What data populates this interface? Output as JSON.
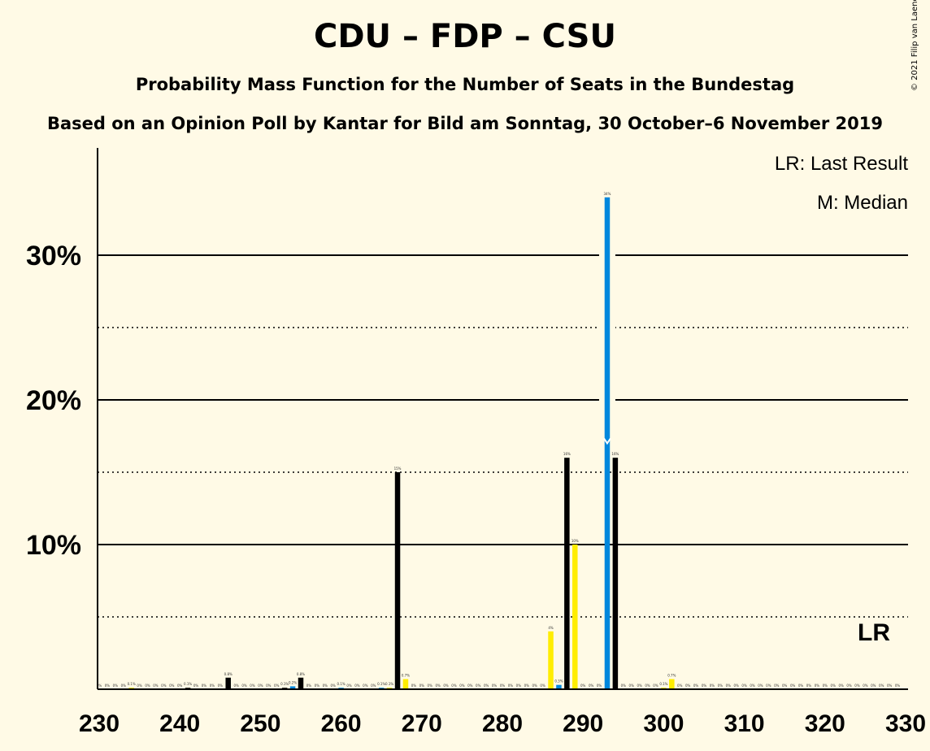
{
  "title": "CDU – FDP – CSU",
  "subtitle": "Probability Mass Function for the Number of Seats in the Bundestag",
  "subtitle2": "Based on an Opinion Poll by Kantar for Bild am Sonntag, 30 October–6 November 2019",
  "copyright": "© 2021 Filip van Laenen",
  "legend": {
    "last_result": "LR: Last Result",
    "median": "M: Median",
    "lr_marker": "LR"
  },
  "colors": {
    "background": "#FFFAE6",
    "black": "#000000",
    "blue": "#0087DC",
    "yellow": "#FFED00"
  },
  "chart_data": {
    "type": "bar",
    "title": "CDU – FDP – CSU",
    "xlabel": "",
    "ylabel": "",
    "xlim": [
      230,
      330
    ],
    "ylim": [
      0,
      37
    ],
    "x_ticks": [
      230,
      240,
      250,
      260,
      270,
      280,
      290,
      300,
      310,
      320,
      330
    ],
    "y_ticks": [
      {
        "value": 10,
        "label": "10%"
      },
      {
        "value": 20,
        "label": "20%"
      },
      {
        "value": 30,
        "label": "30%"
      }
    ],
    "dotted_gridlines": [
      5,
      15,
      25
    ],
    "median_seat": 293,
    "last_result_seat": 327,
    "bars": [
      {
        "x": 230,
        "value": 0,
        "color": "blue",
        "label": "0%"
      },
      {
        "x": 231,
        "value": 0,
        "color": "yellow",
        "label": "0%"
      },
      {
        "x": 232,
        "value": 0,
        "color": "black",
        "label": "0%"
      },
      {
        "x": 233,
        "value": 0,
        "color": "blue",
        "label": "0%"
      },
      {
        "x": 234,
        "value": 0.1,
        "color": "yellow",
        "label": "0.1%"
      },
      {
        "x": 235,
        "value": 0,
        "color": "black",
        "label": "0%"
      },
      {
        "x": 236,
        "value": 0,
        "color": "blue",
        "label": "0%"
      },
      {
        "x": 237,
        "value": 0,
        "color": "yellow",
        "label": "0%"
      },
      {
        "x": 238,
        "value": 0,
        "color": "black",
        "label": "0%"
      },
      {
        "x": 239,
        "value": 0,
        "color": "blue",
        "label": "0%"
      },
      {
        "x": 240,
        "value": 0,
        "color": "yellow",
        "label": "0%"
      },
      {
        "x": 241,
        "value": 0.1,
        "color": "black",
        "label": "0.1%"
      },
      {
        "x": 242,
        "value": 0,
        "color": "blue",
        "label": "0%"
      },
      {
        "x": 243,
        "value": 0,
        "color": "yellow",
        "label": "0%"
      },
      {
        "x": 244,
        "value": 0,
        "color": "black",
        "label": "0%"
      },
      {
        "x": 245,
        "value": 0,
        "color": "blue",
        "label": "0%"
      },
      {
        "x": 246,
        "value": 0.8,
        "color": "black",
        "label": "0.8%"
      },
      {
        "x": 247,
        "value": 0,
        "color": "black",
        "label": "0%"
      },
      {
        "x": 248,
        "value": 0,
        "color": "blue",
        "label": "0%"
      },
      {
        "x": 249,
        "value": 0,
        "color": "yellow",
        "label": "0%"
      },
      {
        "x": 250,
        "value": 0,
        "color": "black",
        "label": "0%"
      },
      {
        "x": 251,
        "value": 0,
        "color": "blue",
        "label": "0%"
      },
      {
        "x": 252,
        "value": 0,
        "color": "yellow",
        "label": "0%"
      },
      {
        "x": 253,
        "value": 0.1,
        "color": "black",
        "label": "0.1%"
      },
      {
        "x": 254,
        "value": 0.2,
        "color": "blue",
        "label": "0.2%"
      },
      {
        "x": 255,
        "value": 0.8,
        "color": "black",
        "label": "0.8%"
      },
      {
        "x": 256,
        "value": 0,
        "color": "black",
        "label": "0%"
      },
      {
        "x": 257,
        "value": 0,
        "color": "blue",
        "label": "0%"
      },
      {
        "x": 258,
        "value": 0,
        "color": "yellow",
        "label": "0%"
      },
      {
        "x": 259,
        "value": 0,
        "color": "black",
        "label": "0%"
      },
      {
        "x": 260,
        "value": 0.1,
        "color": "blue",
        "label": "0.1%"
      },
      {
        "x": 261,
        "value": 0,
        "color": "yellow",
        "label": "0%"
      },
      {
        "x": 262,
        "value": 0,
        "color": "black",
        "label": "0%"
      },
      {
        "x": 263,
        "value": 0,
        "color": "blue",
        "label": "0%"
      },
      {
        "x": 264,
        "value": 0,
        "color": "yellow",
        "label": "0%"
      },
      {
        "x": 265,
        "value": 0.1,
        "color": "blue",
        "label": "0.1%"
      },
      {
        "x": 266,
        "value": 0.1,
        "color": "yellow",
        "label": "0.1%"
      },
      {
        "x": 267,
        "value": 15,
        "color": "black",
        "label": "15%"
      },
      {
        "x": 268,
        "value": 0.7,
        "color": "yellow",
        "label": "0.7%"
      },
      {
        "x": 269,
        "value": 0,
        "color": "black",
        "label": "0%"
      },
      {
        "x": 270,
        "value": 0,
        "color": "blue",
        "label": "0%"
      },
      {
        "x": 271,
        "value": 0,
        "color": "yellow",
        "label": "0%"
      },
      {
        "x": 272,
        "value": 0,
        "color": "black",
        "label": "0%"
      },
      {
        "x": 273,
        "value": 0,
        "color": "blue",
        "label": "0%"
      },
      {
        "x": 274,
        "value": 0,
        "color": "yellow",
        "label": "0%"
      },
      {
        "x": 275,
        "value": 0,
        "color": "black",
        "label": "0%"
      },
      {
        "x": 276,
        "value": 0,
        "color": "blue",
        "label": "0%"
      },
      {
        "x": 277,
        "value": 0,
        "color": "yellow",
        "label": "0%"
      },
      {
        "x": 278,
        "value": 0,
        "color": "black",
        "label": "0%"
      },
      {
        "x": 279,
        "value": 0,
        "color": "blue",
        "label": "0%"
      },
      {
        "x": 280,
        "value": 0,
        "color": "yellow",
        "label": "0%"
      },
      {
        "x": 281,
        "value": 0,
        "color": "black",
        "label": "0%"
      },
      {
        "x": 282,
        "value": 0,
        "color": "blue",
        "label": "0%"
      },
      {
        "x": 283,
        "value": 0,
        "color": "yellow",
        "label": "0%"
      },
      {
        "x": 284,
        "value": 0,
        "color": "black",
        "label": "0%"
      },
      {
        "x": 285,
        "value": 0,
        "color": "blue",
        "label": "0%"
      },
      {
        "x": 286,
        "value": 4,
        "color": "yellow",
        "label": "4%"
      },
      {
        "x": 287,
        "value": 0.3,
        "color": "blue",
        "label": "0.3%"
      },
      {
        "x": 288,
        "value": 16,
        "color": "black",
        "label": "16%"
      },
      {
        "x": 289,
        "value": 10,
        "color": "yellow",
        "label": "10%"
      },
      {
        "x": 290,
        "value": 0,
        "color": "black",
        "label": "0%"
      },
      {
        "x": 291,
        "value": 0,
        "color": "blue",
        "label": "0%"
      },
      {
        "x": 292,
        "value": 0,
        "color": "yellow",
        "label": "0%"
      },
      {
        "x": 293,
        "value": 34,
        "color": "blue",
        "label": "34%"
      },
      {
        "x": 294,
        "value": 16,
        "color": "black",
        "label": "16%"
      },
      {
        "x": 295,
        "value": 0,
        "color": "black",
        "label": "0%"
      },
      {
        "x": 296,
        "value": 0,
        "color": "blue",
        "label": "0%"
      },
      {
        "x": 297,
        "value": 0,
        "color": "yellow",
        "label": "0%"
      },
      {
        "x": 298,
        "value": 0,
        "color": "black",
        "label": "0%"
      },
      {
        "x": 299,
        "value": 0,
        "color": "blue",
        "label": "0%"
      },
      {
        "x": 300,
        "value": 0.1,
        "color": "yellow",
        "label": "0.1%"
      },
      {
        "x": 301,
        "value": 0.7,
        "color": "yellow",
        "label": "0.7%"
      },
      {
        "x": 302,
        "value": 0,
        "color": "black",
        "label": "0%"
      },
      {
        "x": 303,
        "value": 0,
        "color": "blue",
        "label": "0%"
      },
      {
        "x": 304,
        "value": 0,
        "color": "yellow",
        "label": "0%"
      },
      {
        "x": 305,
        "value": 0,
        "color": "black",
        "label": "0%"
      },
      {
        "x": 306,
        "value": 0,
        "color": "blue",
        "label": "0%"
      },
      {
        "x": 307,
        "value": 0,
        "color": "yellow",
        "label": "0%"
      },
      {
        "x": 308,
        "value": 0,
        "color": "black",
        "label": "0%"
      },
      {
        "x": 309,
        "value": 0,
        "color": "blue",
        "label": "0%"
      },
      {
        "x": 310,
        "value": 0,
        "color": "yellow",
        "label": "0%"
      },
      {
        "x": 311,
        "value": 0,
        "color": "black",
        "label": "0%"
      },
      {
        "x": 312,
        "value": 0,
        "color": "blue",
        "label": "0%"
      },
      {
        "x": 313,
        "value": 0,
        "color": "yellow",
        "label": "0%"
      },
      {
        "x": 314,
        "value": 0,
        "color": "black",
        "label": "0%"
      },
      {
        "x": 315,
        "value": 0,
        "color": "blue",
        "label": "0%"
      },
      {
        "x": 316,
        "value": 0,
        "color": "yellow",
        "label": "0%"
      },
      {
        "x": 317,
        "value": 0,
        "color": "black",
        "label": "0%"
      },
      {
        "x": 318,
        "value": 0,
        "color": "blue",
        "label": "0%"
      },
      {
        "x": 319,
        "value": 0,
        "color": "yellow",
        "label": "0%"
      },
      {
        "x": 320,
        "value": 0,
        "color": "black",
        "label": "0%"
      },
      {
        "x": 321,
        "value": 0,
        "color": "blue",
        "label": "0%"
      },
      {
        "x": 322,
        "value": 0,
        "color": "yellow",
        "label": "0%"
      },
      {
        "x": 323,
        "value": 0,
        "color": "black",
        "label": "0%"
      },
      {
        "x": 324,
        "value": 0,
        "color": "blue",
        "label": "0%"
      },
      {
        "x": 325,
        "value": 0,
        "color": "yellow",
        "label": "0%"
      },
      {
        "x": 326,
        "value": 0,
        "color": "black",
        "label": "0%"
      },
      {
        "x": 327,
        "value": 0,
        "color": "blue",
        "label": "0%"
      },
      {
        "x": 328,
        "value": 0,
        "color": "yellow",
        "label": "0%"
      },
      {
        "x": 329,
        "value": 0,
        "color": "black",
        "label": "0%"
      }
    ]
  }
}
